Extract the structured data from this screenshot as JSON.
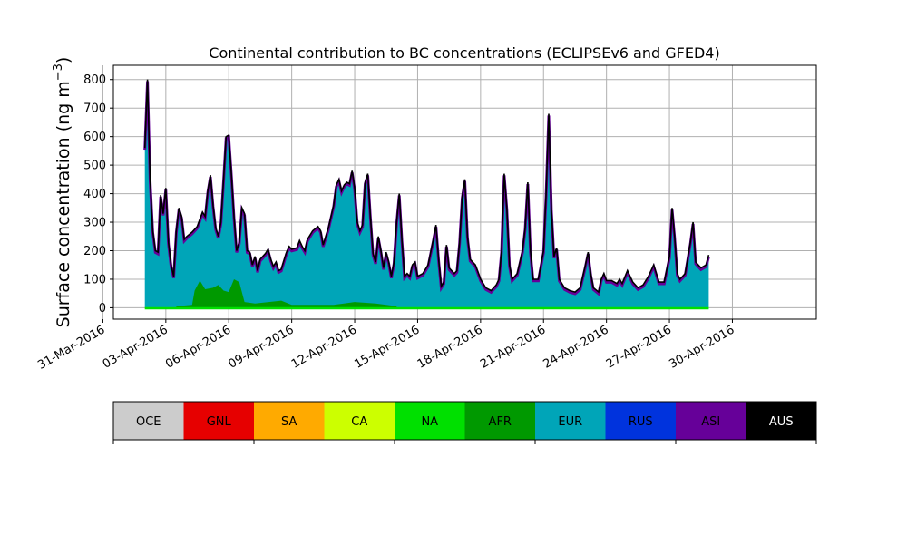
{
  "chart_data": {
    "type": "area",
    "title": "Continental contribution to BC concentrations (ECLIPSEv6 and GFED4)",
    "ylabel": "Surface concentration (ng m",
    "ylabel_sup": "−3",
    "ylabel_close": ")",
    "xlim": [
      "2016-03-31T12:00",
      "2016-05-04T00:00"
    ],
    "ylim": [
      -40,
      850
    ],
    "yticks": [
      0,
      100,
      200,
      300,
      400,
      500,
      600,
      700,
      800
    ],
    "xticks": [
      {
        "date": "2016-03-31",
        "label": "31-Mar-2016"
      },
      {
        "date": "2016-04-03",
        "label": "03-Apr-2016"
      },
      {
        "date": "2016-04-06",
        "label": "06-Apr-2016"
      },
      {
        "date": "2016-04-09",
        "label": "09-Apr-2016"
      },
      {
        "date": "2016-04-12",
        "label": "12-Apr-2016"
      },
      {
        "date": "2016-04-15",
        "label": "15-Apr-2016"
      },
      {
        "date": "2016-04-18",
        "label": "18-Apr-2016"
      },
      {
        "date": "2016-04-21",
        "label": "21-Apr-2016"
      },
      {
        "date": "2016-04-24",
        "label": "24-Apr-2016"
      },
      {
        "date": "2016-04-27",
        "label": "27-Apr-2016"
      },
      {
        "date": "2016-04-30",
        "label": "30-Apr-2016"
      }
    ],
    "grid": true,
    "legend_position": "below",
    "legend": [
      {
        "name": "OCE",
        "color": "#cccccc",
        "text_color": "#000000"
      },
      {
        "name": "GNL",
        "color": "#e60000",
        "text_color": "#000000"
      },
      {
        "name": "SA",
        "color": "#ffaa00",
        "text_color": "#000000"
      },
      {
        "name": "CA",
        "color": "#ccff00",
        "text_color": "#000000"
      },
      {
        "name": "NA",
        "color": "#00e000",
        "text_color": "#000000"
      },
      {
        "name": "AFR",
        "color": "#009900",
        "text_color": "#000000"
      },
      {
        "name": "EUR",
        "color": "#00a5b8",
        "text_color": "#000000"
      },
      {
        "name": "RUS",
        "color": "#0033dd",
        "text_color": "#000000"
      },
      {
        "name": "ASI",
        "color": "#660099",
        "text_color": "#000000"
      },
      {
        "name": "AUS",
        "color": "#000000",
        "text_color": "#ffffff"
      }
    ],
    "series_total": {
      "name": "AUS",
      "points": [
        [
          "2016-04-02T00:00",
          560
        ],
        [
          "2016-04-02T03:00",
          800
        ],
        [
          "2016-04-02T06:00",
          450
        ],
        [
          "2016-04-02T09:00",
          270
        ],
        [
          "2016-04-02T12:00",
          200
        ],
        [
          "2016-04-02T15:00",
          195
        ],
        [
          "2016-04-02T18:00",
          395
        ],
        [
          "2016-04-02T21:00",
          330
        ],
        [
          "2016-04-03T00:00",
          420
        ],
        [
          "2016-04-03T03:00",
          230
        ],
        [
          "2016-04-03T06:00",
          150
        ],
        [
          "2016-04-03T09:00",
          110
        ],
        [
          "2016-04-03T12:00",
          270
        ],
        [
          "2016-04-03T15:00",
          350
        ],
        [
          "2016-04-03T18:00",
          320
        ],
        [
          "2016-04-03T21:00",
          240
        ],
        [
          "2016-04-04T00:00",
          250
        ],
        [
          "2016-04-04T06:00",
          265
        ],
        [
          "2016-04-04T12:00",
          285
        ],
        [
          "2016-04-04T18:00",
          335
        ],
        [
          "2016-04-04T21:00",
          320
        ],
        [
          "2016-04-05T00:00",
          410
        ],
        [
          "2016-04-05T03:00",
          465
        ],
        [
          "2016-04-05T06:00",
          360
        ],
        [
          "2016-04-05T09:00",
          280
        ],
        [
          "2016-04-05T12:00",
          250
        ],
        [
          "2016-04-05T15:00",
          300
        ],
        [
          "2016-04-05T18:00",
          450
        ],
        [
          "2016-04-05T21:00",
          600
        ],
        [
          "2016-04-06T00:00",
          605
        ],
        [
          "2016-04-06T03:00",
          470
        ],
        [
          "2016-04-06T06:00",
          320
        ],
        [
          "2016-04-06T09:00",
          200
        ],
        [
          "2016-04-06T12:00",
          230
        ],
        [
          "2016-04-06T15:00",
          350
        ],
        [
          "2016-04-06T18:00",
          330
        ],
        [
          "2016-04-06T21:00",
          200
        ],
        [
          "2016-04-07T00:00",
          195
        ],
        [
          "2016-04-07T03:00",
          150
        ],
        [
          "2016-04-07T06:00",
          180
        ],
        [
          "2016-04-07T09:00",
          130
        ],
        [
          "2016-04-07T12:00",
          170
        ],
        [
          "2016-04-07T18:00",
          190
        ],
        [
          "2016-04-07T21:00",
          205
        ],
        [
          "2016-04-08T00:00",
          170
        ],
        [
          "2016-04-08T03:00",
          145
        ],
        [
          "2016-04-08T06:00",
          160
        ],
        [
          "2016-04-08T09:00",
          130
        ],
        [
          "2016-04-08T12:00",
          135
        ],
        [
          "2016-04-08T18:00",
          195
        ],
        [
          "2016-04-08T21:00",
          215
        ],
        [
          "2016-04-09T00:00",
          205
        ],
        [
          "2016-04-09T06:00",
          210
        ],
        [
          "2016-04-09T09:00",
          235
        ],
        [
          "2016-04-09T12:00",
          215
        ],
        [
          "2016-04-09T15:00",
          200
        ],
        [
          "2016-04-09T18:00",
          240
        ],
        [
          "2016-04-10T00:00",
          270
        ],
        [
          "2016-04-10T06:00",
          285
        ],
        [
          "2016-04-10T09:00",
          270
        ],
        [
          "2016-04-10T12:00",
          220
        ],
        [
          "2016-04-10T18:00",
          280
        ],
        [
          "2016-04-11T00:00",
          360
        ],
        [
          "2016-04-11T03:00",
          430
        ],
        [
          "2016-04-11T06:00",
          450
        ],
        [
          "2016-04-11T09:00",
          410
        ],
        [
          "2016-04-11T12:00",
          430
        ],
        [
          "2016-04-11T15:00",
          440
        ],
        [
          "2016-04-11T18:00",
          435
        ],
        [
          "2016-04-11T21:00",
          480
        ],
        [
          "2016-04-12T00:00",
          420
        ],
        [
          "2016-04-12T03:00",
          300
        ],
        [
          "2016-04-12T06:00",
          270
        ],
        [
          "2016-04-12T09:00",
          290
        ],
        [
          "2016-04-12T12:00",
          440
        ],
        [
          "2016-04-12T15:00",
          470
        ],
        [
          "2016-04-12T18:00",
          320
        ],
        [
          "2016-04-12T21:00",
          190
        ],
        [
          "2016-04-13T00:00",
          160
        ],
        [
          "2016-04-13T03:00",
          250
        ],
        [
          "2016-04-13T06:00",
          200
        ],
        [
          "2016-04-13T09:00",
          140
        ],
        [
          "2016-04-13T12:00",
          195
        ],
        [
          "2016-04-13T15:00",
          160
        ],
        [
          "2016-04-13T18:00",
          110
        ],
        [
          "2016-04-13T21:00",
          160
        ],
        [
          "2016-04-14T00:00",
          300
        ],
        [
          "2016-04-14T03:00",
          400
        ],
        [
          "2016-04-14T06:00",
          240
        ],
        [
          "2016-04-14T09:00",
          110
        ],
        [
          "2016-04-14T12:00",
          120
        ],
        [
          "2016-04-14T15:00",
          110
        ],
        [
          "2016-04-14T18:00",
          150
        ],
        [
          "2016-04-14T21:00",
          160
        ],
        [
          "2016-04-15T00:00",
          110
        ],
        [
          "2016-04-15T06:00",
          120
        ],
        [
          "2016-04-15T12:00",
          150
        ],
        [
          "2016-04-15T18:00",
          240
        ],
        [
          "2016-04-15T21:00",
          290
        ],
        [
          "2016-04-16T00:00",
          170
        ],
        [
          "2016-04-16T03:00",
          75
        ],
        [
          "2016-04-16T06:00",
          90
        ],
        [
          "2016-04-16T09:00",
          220
        ],
        [
          "2016-04-16T12:00",
          140
        ],
        [
          "2016-04-16T18:00",
          120
        ],
        [
          "2016-04-16T21:00",
          130
        ],
        [
          "2016-04-17T00:00",
          230
        ],
        [
          "2016-04-17T03:00",
          390
        ],
        [
          "2016-04-17T06:00",
          450
        ],
        [
          "2016-04-17T09:00",
          250
        ],
        [
          "2016-04-17T12:00",
          170
        ],
        [
          "2016-04-17T18:00",
          150
        ],
        [
          "2016-04-18T00:00",
          100
        ],
        [
          "2016-04-18T06:00",
          70
        ],
        [
          "2016-04-18T12:00",
          60
        ],
        [
          "2016-04-18T18:00",
          80
        ],
        [
          "2016-04-18T21:00",
          100
        ],
        [
          "2016-04-19T00:00",
          200
        ],
        [
          "2016-04-19T03:00",
          470
        ],
        [
          "2016-04-19T06:00",
          350
        ],
        [
          "2016-04-19T09:00",
          150
        ],
        [
          "2016-04-19T12:00",
          100
        ],
        [
          "2016-04-19T18:00",
          120
        ],
        [
          "2016-04-20T00:00",
          200
        ],
        [
          "2016-04-20T03:00",
          280
        ],
        [
          "2016-04-20T06:00",
          440
        ],
        [
          "2016-04-20T09:00",
          200
        ],
        [
          "2016-04-20T12:00",
          100
        ],
        [
          "2016-04-20T18:00",
          100
        ],
        [
          "2016-04-21T00:00",
          200
        ],
        [
          "2016-04-21T03:00",
          400
        ],
        [
          "2016-04-21T06:00",
          680
        ],
        [
          "2016-04-21T09:00",
          350
        ],
        [
          "2016-04-21T12:00",
          180
        ],
        [
          "2016-04-21T15:00",
          210
        ],
        [
          "2016-04-21T18:00",
          100
        ],
        [
          "2016-04-22T00:00",
          70
        ],
        [
          "2016-04-22T06:00",
          60
        ],
        [
          "2016-04-22T12:00",
          55
        ],
        [
          "2016-04-22T18:00",
          70
        ],
        [
          "2016-04-23T00:00",
          150
        ],
        [
          "2016-04-23T03:00",
          195
        ],
        [
          "2016-04-23T06:00",
          120
        ],
        [
          "2016-04-23T09:00",
          70
        ],
        [
          "2016-04-23T15:00",
          55
        ],
        [
          "2016-04-23T18:00",
          100
        ],
        [
          "2016-04-23T21:00",
          120
        ],
        [
          "2016-04-24T00:00",
          95
        ],
        [
          "2016-04-24T06:00",
          95
        ],
        [
          "2016-04-24T12:00",
          85
        ],
        [
          "2016-04-24T15:00",
          100
        ],
        [
          "2016-04-24T18:00",
          85
        ],
        [
          "2016-04-25T00:00",
          130
        ],
        [
          "2016-04-25T06:00",
          90
        ],
        [
          "2016-04-25T12:00",
          70
        ],
        [
          "2016-04-25T18:00",
          80
        ],
        [
          "2016-04-26T00:00",
          110
        ],
        [
          "2016-04-26T06:00",
          150
        ],
        [
          "2016-04-26T12:00",
          90
        ],
        [
          "2016-04-26T18:00",
          90
        ],
        [
          "2016-04-27T00:00",
          180
        ],
        [
          "2016-04-27T03:00",
          350
        ],
        [
          "2016-04-27T06:00",
          250
        ],
        [
          "2016-04-27T09:00",
          120
        ],
        [
          "2016-04-27T12:00",
          100
        ],
        [
          "2016-04-27T18:00",
          120
        ],
        [
          "2016-04-28T00:00",
          230
        ],
        [
          "2016-04-28T03:00",
          300
        ],
        [
          "2016-04-28T06:00",
          160
        ],
        [
          "2016-04-28T12:00",
          140
        ],
        [
          "2016-04-28T18:00",
          150
        ],
        [
          "2016-04-28T21:00",
          185
        ]
      ]
    },
    "series_afr": {
      "name": "AFR",
      "points": [
        [
          "2016-04-03T12:00",
          5
        ],
        [
          "2016-04-04T06:00",
          10
        ],
        [
          "2016-04-04T09:00",
          60
        ],
        [
          "2016-04-04T15:00",
          95
        ],
        [
          "2016-04-04T21:00",
          65
        ],
        [
          "2016-04-05T06:00",
          70
        ],
        [
          "2016-04-05T12:00",
          80
        ],
        [
          "2016-04-05T18:00",
          60
        ],
        [
          "2016-04-06T00:00",
          55
        ],
        [
          "2016-04-06T06:00",
          100
        ],
        [
          "2016-04-06T12:00",
          90
        ],
        [
          "2016-04-06T18:00",
          20
        ],
        [
          "2016-04-07T06:00",
          15
        ],
        [
          "2016-04-08T12:00",
          25
        ],
        [
          "2016-04-09T00:00",
          10
        ],
        [
          "2016-04-11T00:00",
          10
        ],
        [
          "2016-04-12T00:00",
          20
        ],
        [
          "2016-04-13T00:00",
          15
        ],
        [
          "2016-04-14T00:00",
          5
        ]
      ]
    },
    "series_na": {
      "name": "NA",
      "points": [
        [
          "2016-04-02T00:00",
          -5
        ],
        [
          "2016-04-28T21:00",
          -5
        ]
      ]
    }
  }
}
